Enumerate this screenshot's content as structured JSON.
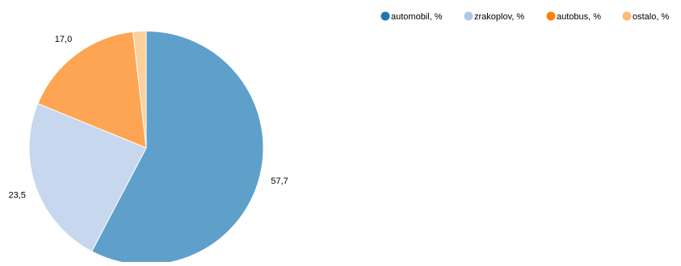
{
  "chart_data": {
    "type": "pie",
    "title": "",
    "series": [
      {
        "name": "automobil, %",
        "value": 57.7,
        "label": "57,7",
        "color": "#5fa0ca"
      },
      {
        "name": "zrakoplov, %",
        "value": 23.5,
        "label": "23,5",
        "color": "#c6d7ee"
      },
      {
        "name": "autobus, %",
        "value": 17.0,
        "label": "17,0",
        "color": "#fda552"
      },
      {
        "name": "ostalo, %",
        "value": 1.8,
        "label": "",
        "color": "#fdcf9b"
      }
    ],
    "legend": {
      "placement": "top-right",
      "marker_colors": [
        "#1f77b4",
        "#aec7e8",
        "#ff7f0e",
        "#ffbb78"
      ]
    }
  }
}
